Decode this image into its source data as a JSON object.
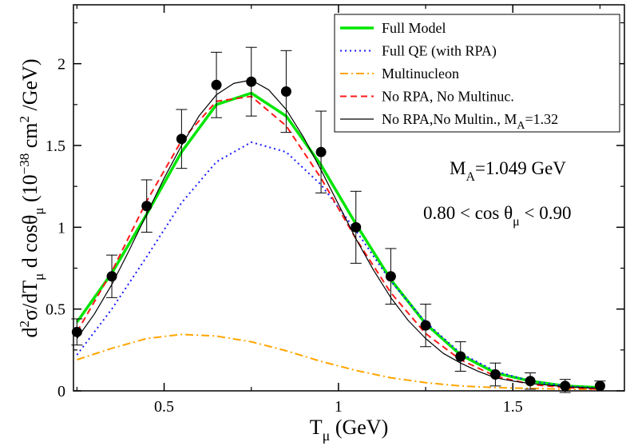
{
  "chart_data": {
    "type": "line",
    "xlim": [
      0.24,
      1.82
    ],
    "ylim": [
      0,
      2.36
    ],
    "x_ticks": [
      0.5,
      1,
      1.5
    ],
    "x_tick_labels": [
      "0.5",
      "1",
      "1.5"
    ],
    "y_ticks": [
      0,
      0.5,
      1,
      1.5,
      2
    ],
    "y_tick_labels": [
      "0",
      "0.5",
      "1",
      "1.5",
      "2"
    ],
    "xlabel": {
      "main": "T",
      "sub": "μ",
      "tail": " (GeV)"
    },
    "ylabel": {
      "parts": [
        {
          "t": "d",
          "s": "n"
        },
        {
          "t": "2",
          "s": "sup"
        },
        {
          "t": "σ/dT",
          "s": "n"
        },
        {
          "t": "μ",
          "s": "sub"
        },
        {
          "t": " d cosθ",
          "s": "n"
        },
        {
          "t": "μ",
          "s": "sub"
        },
        {
          "t": " (10",
          "s": "n"
        },
        {
          "t": "−38",
          "s": "sup"
        },
        {
          "t": " cm",
          "s": "n"
        },
        {
          "t": "2",
          "s": "sup"
        },
        {
          "t": " /GeV)",
          "s": "n"
        }
      ]
    },
    "grid": false,
    "legend_position": "top-right",
    "annotations": [
      {
        "main": "M",
        "sub": "A",
        "tail": "=1.049 GeV"
      },
      {
        "main": "0.80 < cos θ",
        "sub": "μ",
        "tail": " < 0.90"
      }
    ],
    "series": [
      {
        "name": "Full Model",
        "color": "#00e600",
        "style": "solid",
        "width": 3.5,
        "x": [
          0.25,
          0.35,
          0.45,
          0.55,
          0.65,
          0.75,
          0.85,
          0.95,
          1.05,
          1.15,
          1.25,
          1.35,
          1.45,
          1.55,
          1.65,
          1.75
        ],
        "y": [
          0.42,
          0.72,
          1.08,
          1.46,
          1.75,
          1.82,
          1.68,
          1.38,
          1.02,
          0.68,
          0.41,
          0.22,
          0.11,
          0.06,
          0.03,
          0.02
        ]
      },
      {
        "name": "Full QE (with RPA)",
        "color": "#1a1aff",
        "style": "dotted",
        "width": 2,
        "x": [
          0.25,
          0.35,
          0.45,
          0.55,
          0.65,
          0.75,
          0.85,
          0.95,
          1.05,
          1.15,
          1.25,
          1.35,
          1.45,
          1.55,
          1.65,
          1.75
        ],
        "y": [
          0.22,
          0.5,
          0.82,
          1.15,
          1.4,
          1.52,
          1.46,
          1.26,
          0.98,
          0.67,
          0.42,
          0.23,
          0.12,
          0.06,
          0.03,
          0.015
        ]
      },
      {
        "name": "Multinucleon",
        "color": "#ffa500",
        "style": "dashdot",
        "width": 2,
        "x": [
          0.25,
          0.35,
          0.45,
          0.55,
          0.65,
          0.75,
          0.85,
          0.95,
          1.05,
          1.15,
          1.25,
          1.35,
          1.45,
          1.55,
          1.65,
          1.75
        ],
        "y": [
          0.19,
          0.26,
          0.32,
          0.345,
          0.335,
          0.3,
          0.245,
          0.18,
          0.125,
          0.08,
          0.05,
          0.03,
          0.02,
          0.015,
          0.01,
          0.01
        ]
      },
      {
        "name": "No RPA, No Multinuc.",
        "color": "#ff1a1a",
        "style": "dashed",
        "width": 2,
        "x": [
          0.25,
          0.35,
          0.45,
          0.55,
          0.65,
          0.75,
          0.85,
          0.95,
          1.05,
          1.15,
          1.25,
          1.35,
          1.45,
          1.55,
          1.65,
          1.75
        ],
        "y": [
          0.36,
          0.73,
          1.16,
          1.53,
          1.77,
          1.8,
          1.62,
          1.3,
          0.93,
          0.6,
          0.35,
          0.19,
          0.09,
          0.04,
          0.02,
          0.01
        ]
      },
      {
        "name": {
          "main": "No RPA,No Multin., M",
          "sub": "A",
          "tail": "=1.32"
        },
        "color": "#000000",
        "style": "solid",
        "width": 1.2,
        "x": [
          0.25,
          0.3,
          0.35,
          0.4,
          0.45,
          0.5,
          0.55,
          0.6,
          0.65,
          0.7,
          0.75,
          0.8,
          0.85,
          0.9,
          0.95,
          1.0,
          1.05,
          1.1,
          1.15,
          1.2,
          1.25,
          1.3,
          1.35,
          1.4,
          1.45,
          1.5,
          1.55,
          1.6,
          1.65,
          1.7,
          1.75
        ],
        "y": [
          0.32,
          0.47,
          0.65,
          0.86,
          1.08,
          1.3,
          1.5,
          1.68,
          1.81,
          1.88,
          1.9,
          1.84,
          1.72,
          1.55,
          1.35,
          1.14,
          0.93,
          0.74,
          0.57,
          0.43,
          0.32,
          0.23,
          0.17,
          0.12,
          0.08,
          0.06,
          0.045,
          0.035,
          0.025,
          0.02,
          0.015
        ]
      }
    ],
    "data_points": {
      "marker": "filled-circle",
      "x": [
        0.25,
        0.35,
        0.45,
        0.55,
        0.65,
        0.75,
        0.85,
        0.95,
        1.05,
        1.15,
        1.25,
        1.35,
        1.45,
        1.55,
        1.65,
        1.75
      ],
      "y": [
        0.36,
        0.7,
        1.13,
        1.54,
        1.87,
        1.89,
        1.83,
        1.46,
        1.0,
        0.7,
        0.4,
        0.21,
        0.1,
        0.06,
        0.03,
        0.03
      ],
      "err": [
        0.08,
        0.13,
        0.16,
        0.18,
        0.2,
        0.21,
        0.25,
        0.25,
        0.22,
        0.17,
        0.13,
        0.09,
        0.07,
        0.05,
        0.04,
        0.03
      ]
    }
  }
}
